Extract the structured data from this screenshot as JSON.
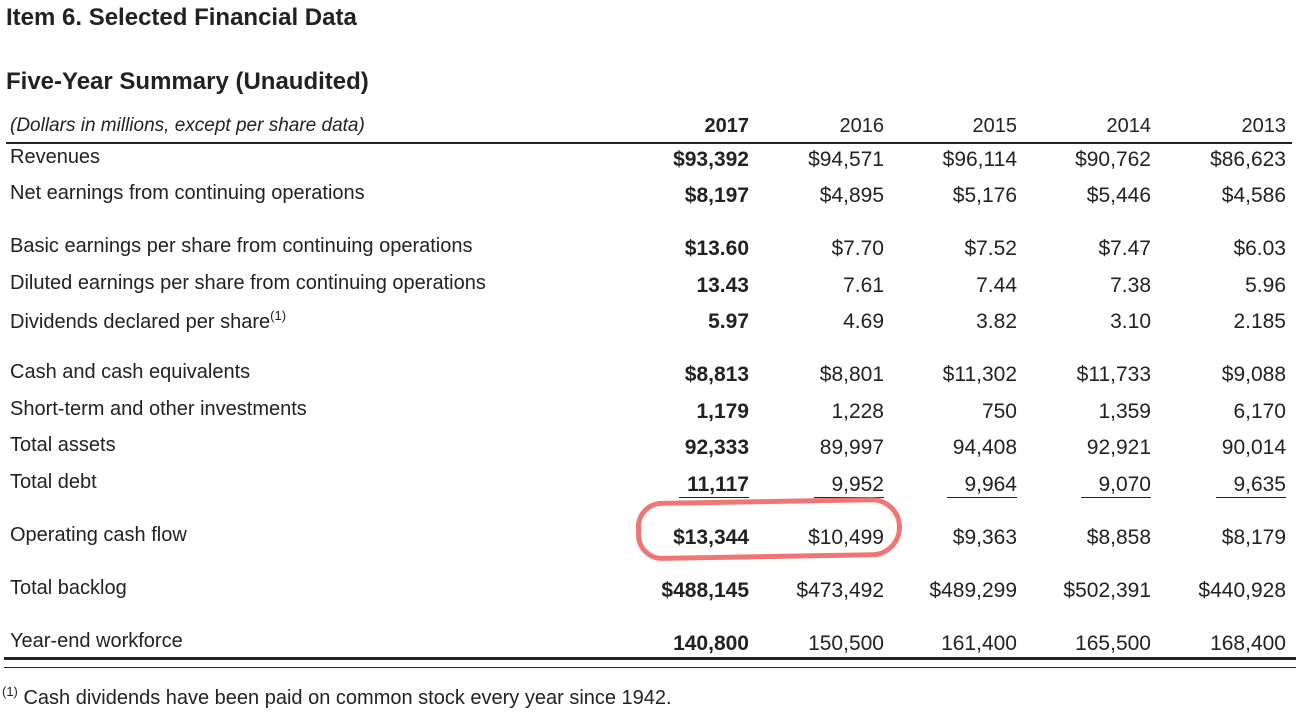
{
  "title": "Item 6. Selected Financial Data",
  "subtitle": "Five-Year Summary (Unaudited)",
  "units_note": "(Dollars in millions, except per share data)",
  "years": [
    "2017",
    "2016",
    "2015",
    "2014",
    "2013"
  ],
  "rows": [
    {
      "label": "Revenues",
      "values": [
        "$93,392",
        "$94,571",
        "$96,114",
        "$90,762",
        "$86,623"
      ]
    },
    {
      "label": "Net earnings from continuing operations",
      "values": [
        "$8,197",
        "$4,895",
        "$5,176",
        "$5,446",
        "$4,586"
      ]
    },
    {
      "label": "Basic earnings per share from continuing operations",
      "values": [
        "$13.60",
        "$7.70",
        "$7.52",
        "$7.47",
        "$6.03"
      ]
    },
    {
      "label": "Diluted earnings per share from continuing operations",
      "values": [
        "13.43",
        "7.61",
        "7.44",
        "7.38",
        "5.96"
      ]
    },
    {
      "label": "Dividends declared per share",
      "footnote_mark": "(1)",
      "values": [
        "5.97",
        "4.69",
        "3.82",
        "3.10",
        "2.185"
      ]
    },
    {
      "label": "Cash and cash equivalents",
      "values": [
        "$8,813",
        "$8,801",
        "$11,302",
        "$11,733",
        "$9,088"
      ]
    },
    {
      "label": "Short-term and other investments",
      "values": [
        "1,179",
        "1,228",
        "750",
        "1,359",
        "6,170"
      ]
    },
    {
      "label": "Total assets",
      "values": [
        "92,333",
        "89,997",
        "94,408",
        "92,921",
        "90,014"
      ]
    },
    {
      "label": "Total debt",
      "values": [
        "11,117",
        "9,952",
        "9,964",
        "9,070",
        "9,635"
      ]
    },
    {
      "label": "Operating cash flow",
      "values": [
        "$13,344",
        "$10,499",
        "$9,363",
        "$8,858",
        "$8,179"
      ]
    },
    {
      "label": "Total backlog",
      "values": [
        "$488,145",
        "$473,492",
        "$489,299",
        "$502,391",
        "$440,928"
      ]
    },
    {
      "label": "Year-end workforce",
      "values": [
        "140,800",
        "150,500",
        "161,400",
        "165,500",
        "168,400"
      ]
    }
  ],
  "footnote": {
    "mark": "(1)",
    "text": "Cash dividends have been paid on common stock every year since 1942."
  },
  "annotation_color": "#f07676"
}
